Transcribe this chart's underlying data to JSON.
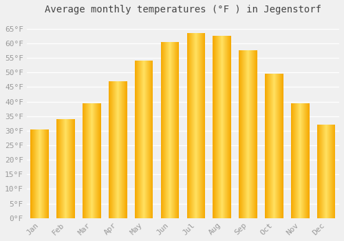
{
  "title": "Average monthly temperatures (°F ) in Jegenstorf",
  "months": [
    "Jan",
    "Feb",
    "Mar",
    "Apr",
    "May",
    "Jun",
    "Jul",
    "Aug",
    "Sep",
    "Oct",
    "Nov",
    "Dec"
  ],
  "values": [
    30.5,
    34.0,
    39.5,
    47.0,
    54.0,
    60.5,
    63.5,
    62.5,
    57.5,
    49.5,
    39.5,
    32.0
  ],
  "bar_color_edge": "#F5A800",
  "bar_color_center": "#FFE060",
  "background_color": "#F0F0F0",
  "grid_color": "#FFFFFF",
  "ylim": [
    0,
    68
  ],
  "yticks": [
    0,
    5,
    10,
    15,
    20,
    25,
    30,
    35,
    40,
    45,
    50,
    55,
    60,
    65
  ],
  "title_fontsize": 10,
  "tick_fontsize": 8,
  "tick_color": "#999999",
  "bar_width": 0.7,
  "gradient_steps": 100
}
